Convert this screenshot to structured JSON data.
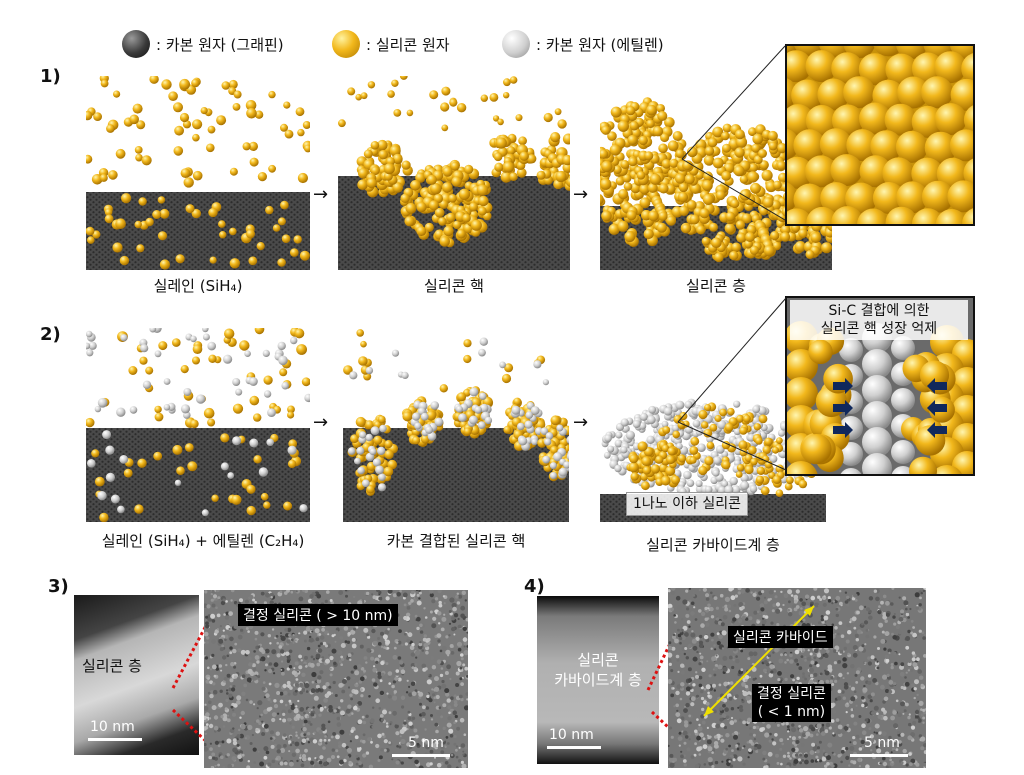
{
  "legend": [
    {
      "color": "#2e2e2e",
      "label": ": 카본 원자 (그래핀)"
    },
    {
      "color": "#f2b81c",
      "label": ": 실리콘 원자"
    },
    {
      "color": "#cfcfcf",
      "label": ": 카본 원자 (에틸렌)"
    }
  ],
  "row1": {
    "label": "1)",
    "captions": [
      "실레인 (SiH₄)",
      "실리콘 핵",
      "실리콘 층"
    ]
  },
  "row2": {
    "label": "2)",
    "captions": [
      "실레인 (SiH₄) + 에틸렌 (C₂H₄)",
      "카본 결합된 실리콘 핵",
      "실리콘 카바이드계 층"
    ],
    "callout_top": "Si-C 결합에 의한\n실리콘 핵 성장 억제",
    "callout_bottom": "1나노 이하 실리콘"
  },
  "row3": {
    "label3": "3)",
    "label4": "4)",
    "left_stem": "실리콘 층",
    "left_tem": "결정 실리콘 ( > 10 nm)",
    "left_scale_stem": "10 nm",
    "left_scale_tem": "5 nm",
    "right_stem": "실리콘\n카바이드계 층",
    "right_tem_a": "실리콘 카바이드",
    "right_tem_b": "결정 실리콘\n( < 1 nm)",
    "right_scale_stem": "10 nm",
    "right_scale_tem": "5 nm"
  },
  "colors": {
    "gold": "#f2b81c",
    "graphene": "#3a3a3a",
    "ethylene": "#cfcfcf",
    "arrow_blue": "#10285c"
  }
}
